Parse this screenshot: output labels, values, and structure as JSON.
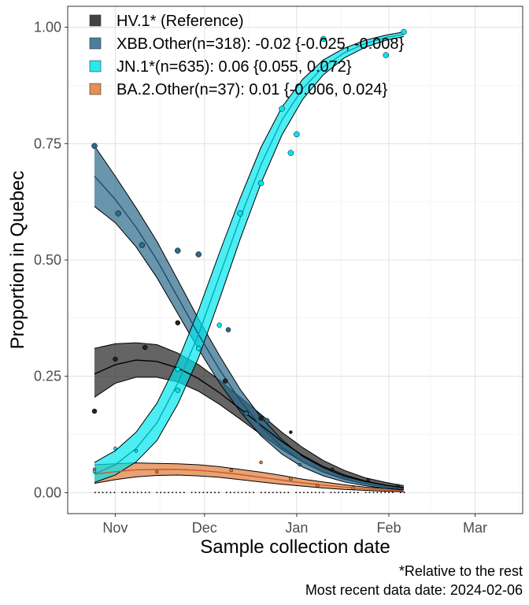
{
  "chart_data": {
    "type": "line",
    "xlabel": "Sample collection date",
    "ylabel": "Proportion in Quebec",
    "x_domain": [
      "2023-10-16",
      "2024-03-17"
    ],
    "y_domain": [
      -0.045,
      1.045
    ],
    "x_ticks": [
      {
        "date": "2023-11-01",
        "label": "Nov"
      },
      {
        "date": "2023-12-01",
        "label": "Dec"
      },
      {
        "date": "2024-01-01",
        "label": "Jan"
      },
      {
        "date": "2024-02-01",
        "label": "Feb"
      },
      {
        "date": "2024-03-01",
        "label": "Mar"
      }
    ],
    "y_ticks": [
      {
        "value": 0.0,
        "label": "0.00"
      },
      {
        "value": 0.25,
        "label": "0.25"
      },
      {
        "value": 0.5,
        "label": "0.50"
      },
      {
        "value": 0.75,
        "label": "0.75"
      },
      {
        "value": 1.0,
        "label": "1.00"
      }
    ],
    "grid": true,
    "legend_position": "top-left",
    "caption_lines": [
      "*Relative to the rest",
      "Most recent data date: 2024-02-06"
    ],
    "series": [
      {
        "name": "HV.1* (Reference)",
        "color": "#222222",
        "x": [
          "2023-10-25",
          "2023-11-01",
          "2023-11-08",
          "2023-11-15",
          "2023-11-22",
          "2023-11-29",
          "2023-12-06",
          "2023-12-13",
          "2023-12-20",
          "2023-12-27",
          "2024-01-03",
          "2024-01-10",
          "2024-01-17",
          "2024-01-24",
          "2024-01-31",
          "2024-02-06"
        ],
        "fit": [
          0.255,
          0.275,
          0.285,
          0.282,
          0.268,
          0.245,
          0.215,
          0.18,
          0.145,
          0.11,
          0.08,
          0.056,
          0.038,
          0.025,
          0.016,
          0.011
        ],
        "lower": [
          0.205,
          0.235,
          0.248,
          0.248,
          0.238,
          0.218,
          0.19,
          0.158,
          0.125,
          0.093,
          0.066,
          0.045,
          0.03,
          0.019,
          0.012,
          0.008
        ],
        "upper": [
          0.31,
          0.32,
          0.322,
          0.318,
          0.3,
          0.275,
          0.242,
          0.205,
          0.168,
          0.13,
          0.097,
          0.069,
          0.048,
          0.032,
          0.022,
          0.015
        ],
        "points": [
          {
            "x": "2023-10-25",
            "y": 0.175
          },
          {
            "x": "2023-11-01",
            "y": 0.287
          },
          {
            "x": "2023-11-11",
            "y": 0.312
          },
          {
            "x": "2023-11-22",
            "y": 0.365
          },
          {
            "x": "2023-12-08",
            "y": 0.24
          },
          {
            "x": "2023-12-15",
            "y": 0.171
          },
          {
            "x": "2023-12-20",
            "y": 0.16
          },
          {
            "x": "2023-12-30",
            "y": 0.13
          },
          {
            "x": "2024-01-13",
            "y": 0.05
          },
          {
            "x": "2024-01-25",
            "y": 0.027
          },
          {
            "x": "2024-02-04",
            "y": 0.015
          }
        ]
      },
      {
        "name": "XBB.Other(n=318): -0.02 {-0.025, -0.008}",
        "color": "#2a6a8a",
        "x": [
          "2023-10-25",
          "2023-11-01",
          "2023-11-08",
          "2023-11-15",
          "2023-11-22",
          "2023-11-29",
          "2023-12-06",
          "2023-12-13",
          "2023-12-20",
          "2023-12-27",
          "2024-01-03",
          "2024-01-10",
          "2024-01-17",
          "2024-01-24",
          "2024-01-31",
          "2024-02-06"
        ],
        "fit": [
          0.68,
          0.63,
          0.57,
          0.5,
          0.42,
          0.34,
          0.265,
          0.198,
          0.142,
          0.098,
          0.066,
          0.044,
          0.029,
          0.019,
          0.012,
          0.008
        ],
        "lower": [
          0.615,
          0.58,
          0.528,
          0.462,
          0.385,
          0.308,
          0.236,
          0.174,
          0.122,
          0.083,
          0.055,
          0.036,
          0.023,
          0.015,
          0.009,
          0.006
        ],
        "upper": [
          0.745,
          0.68,
          0.612,
          0.54,
          0.457,
          0.373,
          0.295,
          0.222,
          0.162,
          0.114,
          0.078,
          0.053,
          0.035,
          0.024,
          0.016,
          0.011
        ],
        "points": [
          {
            "x": "2023-10-25",
            "y": 0.745
          },
          {
            "x": "2023-11-02",
            "y": 0.6
          },
          {
            "x": "2023-11-10",
            "y": 0.532
          },
          {
            "x": "2023-11-22",
            "y": 0.52
          },
          {
            "x": "2023-11-29",
            "y": 0.512
          },
          {
            "x": "2023-12-09",
            "y": 0.35
          },
          {
            "x": "2023-12-15",
            "y": 0.17
          },
          {
            "x": "2023-12-22",
            "y": 0.155
          },
          {
            "x": "2024-01-02",
            "y": 0.06
          }
        ]
      },
      {
        "name": "JN.1*(n=635): 0.06 {0.055, 0.072}",
        "color": "#00e5ee",
        "x": [
          "2023-10-25",
          "2023-11-01",
          "2023-11-08",
          "2023-11-15",
          "2023-11-22",
          "2023-11-29",
          "2023-12-06",
          "2023-12-13",
          "2023-12-20",
          "2023-12-27",
          "2024-01-03",
          "2024-01-10",
          "2024-01-17",
          "2024-01-24",
          "2024-01-31",
          "2024-02-06"
        ],
        "fit": [
          0.04,
          0.06,
          0.095,
          0.15,
          0.235,
          0.34,
          0.465,
          0.59,
          0.705,
          0.8,
          0.868,
          0.915,
          0.945,
          0.965,
          0.978,
          0.985
        ],
        "lower": [
          0.022,
          0.038,
          0.066,
          0.112,
          0.19,
          0.29,
          0.415,
          0.545,
          0.665,
          0.768,
          0.845,
          0.898,
          0.934,
          0.957,
          0.972,
          0.98
        ],
        "upper": [
          0.065,
          0.09,
          0.13,
          0.192,
          0.282,
          0.392,
          0.515,
          0.633,
          0.742,
          0.828,
          0.888,
          0.93,
          0.955,
          0.972,
          0.983,
          0.99
        ],
        "points": [
          {
            "x": "2023-10-25",
            "y": 0.045
          },
          {
            "x": "2023-11-01",
            "y": 0.095
          },
          {
            "x": "2023-11-08",
            "y": 0.09
          },
          {
            "x": "2023-11-22",
            "y": 0.22
          },
          {
            "x": "2023-11-22",
            "y": 0.265
          },
          {
            "x": "2023-11-29",
            "y": 0.31
          },
          {
            "x": "2023-12-06",
            "y": 0.36
          },
          {
            "x": "2023-12-13",
            "y": 0.6
          },
          {
            "x": "2023-12-20",
            "y": 0.665
          },
          {
            "x": "2023-12-27",
            "y": 0.825
          },
          {
            "x": "2024-01-01",
            "y": 0.77
          },
          {
            "x": "2023-12-30",
            "y": 0.73
          },
          {
            "x": "2024-01-10",
            "y": 0.975
          },
          {
            "x": "2024-01-31",
            "y": 0.94
          },
          {
            "x": "2024-02-06",
            "y": 0.99
          }
        ]
      },
      {
        "name": "BA.2.Other(n=37): 0.01 {-0.006, 0.024}",
        "color": "#e07b39",
        "x": [
          "2023-10-25",
          "2023-11-01",
          "2023-11-08",
          "2023-11-15",
          "2023-11-22",
          "2023-11-29",
          "2023-12-06",
          "2023-12-13",
          "2023-12-20",
          "2023-12-27",
          "2024-01-03",
          "2024-01-10",
          "2024-01-17",
          "2024-01-24",
          "2024-01-31",
          "2024-02-06"
        ],
        "fit": [
          0.04,
          0.045,
          0.049,
          0.05,
          0.05,
          0.048,
          0.044,
          0.039,
          0.033,
          0.027,
          0.021,
          0.016,
          0.012,
          0.008,
          0.006,
          0.004
        ],
        "lower": [
          0.02,
          0.028,
          0.034,
          0.037,
          0.038,
          0.036,
          0.033,
          0.028,
          0.023,
          0.018,
          0.014,
          0.01,
          0.007,
          0.005,
          0.003,
          0.002
        ],
        "upper": [
          0.06,
          0.062,
          0.064,
          0.063,
          0.062,
          0.06,
          0.056,
          0.05,
          0.044,
          0.037,
          0.029,
          0.023,
          0.017,
          0.012,
          0.009,
          0.006
        ],
        "points": [
          {
            "x": "2023-10-25",
            "y": 0.05
          },
          {
            "x": "2023-11-01",
            "y": 0.095
          },
          {
            "x": "2023-11-15",
            "y": 0.045
          },
          {
            "x": "2023-12-10",
            "y": 0.048
          },
          {
            "x": "2023-12-20",
            "y": 0.065
          },
          {
            "x": "2023-12-30",
            "y": 0.03
          },
          {
            "x": "2024-01-08",
            "y": 0.015
          },
          {
            "x": "2024-01-20",
            "y": 0.01
          }
        ]
      }
    ]
  }
}
